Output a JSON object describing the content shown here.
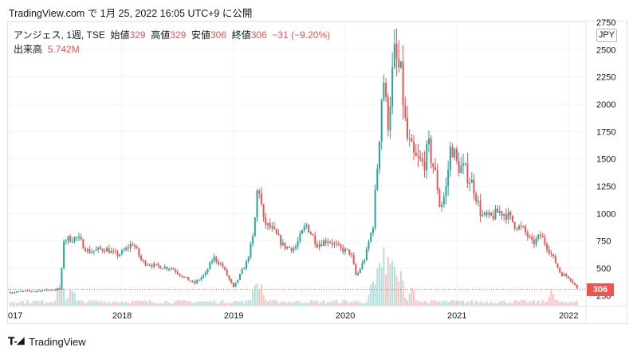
{
  "header": {
    "text": "TradingView.com で 1月 25, 2022 16:05 UTC+9 に公開"
  },
  "legend": {
    "symbol": "アンジェス, 1週, TSE",
    "open_label": "始値",
    "open": "329",
    "high_label": "高値",
    "high": "329",
    "low_label": "安値",
    "low": "306",
    "close_label": "終値",
    "close": "306",
    "change": "−31 (−9.20%)",
    "volume_label": "出来高",
    "volume": "5.742M"
  },
  "currency": "JPY",
  "last_price_label": "306",
  "footer": {
    "brand": "TradingView",
    "logo": "tradingview-logo-icon"
  },
  "colors": {
    "up": "#26a69a",
    "down": "#ef5350",
    "grid": "#f0f3fa",
    "axis_text": "#131722"
  },
  "chart_data": {
    "type": "candlestick",
    "title": "",
    "xlabel": "",
    "ylabel": "",
    "ylim": [
      150,
      2750
    ],
    "yticks": [
      250,
      500,
      750,
      1000,
      1250,
      1500,
      1750,
      2000,
      2250,
      2500,
      2750
    ],
    "xtick_labels": [
      "017",
      "2018",
      "2019",
      "2020",
      "2021",
      "2022"
    ],
    "last_price": 306,
    "price_path": [
      [
        2017.0,
        280
      ],
      [
        2017.2,
        290
      ],
      [
        2017.45,
        310
      ],
      [
        2017.48,
        760
      ],
      [
        2017.6,
        780
      ],
      [
        2017.7,
        650
      ],
      [
        2017.85,
        680
      ],
      [
        2017.95,
        620
      ],
      [
        2018.0,
        640
      ],
      [
        2018.1,
        730
      ],
      [
        2018.18,
        560
      ],
      [
        2018.3,
        520
      ],
      [
        2018.45,
        500
      ],
      [
        2018.55,
        420
      ],
      [
        2018.65,
        360
      ],
      [
        2018.75,
        450
      ],
      [
        2018.82,
        600
      ],
      [
        2018.9,
        520
      ],
      [
        2019.0,
        320
      ],
      [
        2019.05,
        420
      ],
      [
        2019.12,
        560
      ],
      [
        2019.18,
        800
      ],
      [
        2019.22,
        1300
      ],
      [
        2019.27,
        920
      ],
      [
        2019.35,
        850
      ],
      [
        2019.45,
        700
      ],
      [
        2019.55,
        680
      ],
      [
        2019.65,
        900
      ],
      [
        2019.75,
        720
      ],
      [
        2019.85,
        760
      ],
      [
        2019.95,
        680
      ],
      [
        2020.05,
        640
      ],
      [
        2020.1,
        420
      ],
      [
        2020.18,
        600
      ],
      [
        2020.25,
        900
      ],
      [
        2020.3,
        1600
      ],
      [
        2020.34,
        2300
      ],
      [
        2020.38,
        1800
      ],
      [
        2020.44,
        2450
      ],
      [
        2020.5,
        2250
      ],
      [
        2020.55,
        1700
      ],
      [
        2020.62,
        1500
      ],
      [
        2020.7,
        1450
      ],
      [
        2020.75,
        1600
      ],
      [
        2020.82,
        1300
      ],
      [
        2020.85,
        1050
      ],
      [
        2020.9,
        1200
      ],
      [
        2020.95,
        1650
      ],
      [
        2021.0,
        1450
      ],
      [
        2021.08,
        1380
      ],
      [
        2021.15,
        1250
      ],
      [
        2021.22,
        980
      ],
      [
        2021.3,
        960
      ],
      [
        2021.38,
        1020
      ],
      [
        2021.45,
        990
      ],
      [
        2021.52,
        900
      ],
      [
        2021.6,
        850
      ],
      [
        2021.68,
        720
      ],
      [
        2021.75,
        800
      ],
      [
        2021.82,
        680
      ],
      [
        2021.88,
        560
      ],
      [
        2021.93,
        450
      ],
      [
        2022.0,
        420
      ],
      [
        2022.05,
        360
      ],
      [
        2022.08,
        306
      ]
    ],
    "volume_spikes": [
      [
        2017.45,
        0.5
      ],
      [
        2017.55,
        0.35
      ],
      [
        2019.2,
        0.45
      ],
      [
        2019.25,
        0.3
      ],
      [
        2020.25,
        0.45
      ],
      [
        2020.3,
        0.75
      ],
      [
        2020.35,
        0.9
      ],
      [
        2020.4,
        1.0
      ],
      [
        2020.45,
        0.8
      ],
      [
        2020.5,
        0.5
      ],
      [
        2020.6,
        0.3
      ],
      [
        2021.85,
        0.25
      ]
    ]
  }
}
